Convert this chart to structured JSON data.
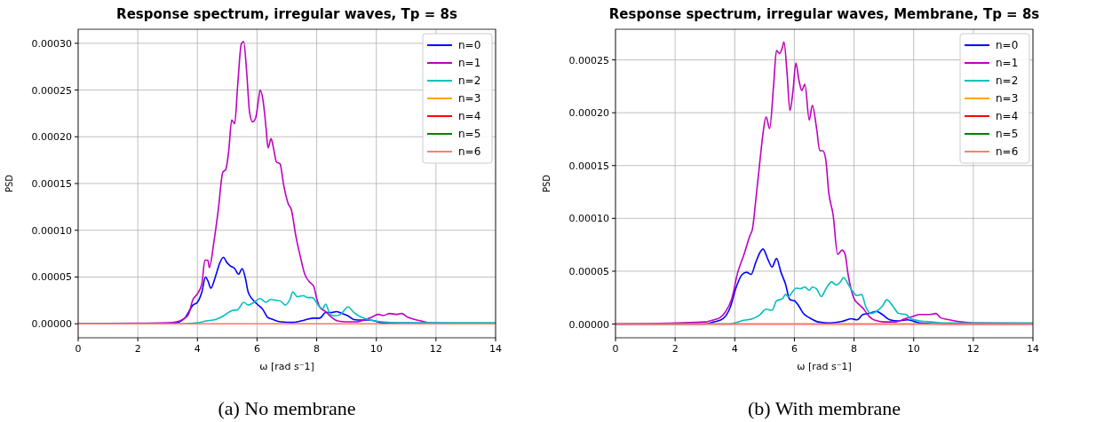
{
  "chart_data": [
    {
      "type": "line",
      "title": "Response spectrum, irregular waves, Tp = 8s",
      "xlabel": "ω [rad s⁻1]",
      "ylabel": "PSD",
      "annotations": [
        "(a) No membrane"
      ],
      "xlim": [
        0,
        14
      ],
      "ylim": [
        -1.5e-05,
        0.000315
      ],
      "xticks": [
        0,
        2,
        4,
        6,
        8,
        10,
        12,
        14
      ],
      "yticks": [
        {
          "value": 0,
          "label": "0.00000"
        },
        {
          "value": 5e-05,
          "label": "0.00005"
        },
        {
          "value": 0.0001,
          "label": "0.00010"
        },
        {
          "value": 0.00015,
          "label": "0.00015"
        },
        {
          "value": 0.0002,
          "label": "0.00020"
        },
        {
          "value": 0.00025,
          "label": "0.00025"
        },
        {
          "value": 0.0003,
          "label": "0.00030"
        }
      ],
      "grid": true,
      "legend": "top right",
      "line_style": "solid",
      "series": [
        {
          "name": "n=0",
          "color": "#0000ff",
          "x": [
            0,
            3,
            3.3,
            3.6,
            3.85,
            4.0,
            4.15,
            4.27,
            4.35,
            4.45,
            4.6,
            4.75,
            4.87,
            5.0,
            5.1,
            5.25,
            5.38,
            5.5,
            5.6,
            5.7,
            5.85,
            6.0,
            6.2,
            6.35,
            6.5,
            6.8,
            7.2,
            7.6,
            7.9,
            8.1,
            8.3,
            8.5,
            8.65,
            8.85,
            9.05,
            9.25,
            9.5,
            9.8,
            10.2,
            11,
            14
          ],
          "values": [
            0,
            0,
            1e-06,
            7e-06,
            2e-05,
            2.3e-05,
            3.4e-05,
            5e-05,
            4.6e-05,
            3.8e-05,
            5e-05,
            6.5e-05,
            7.1e-05,
            6.5e-05,
            6.2e-05,
            5.9e-05,
            5.3e-05,
            5.9e-05,
            5e-05,
            3.4e-05,
            2.6e-05,
            2.1e-05,
            1.5e-05,
            7e-06,
            5e-06,
            2e-06,
            1.5e-06,
            4e-06,
            6e-06,
            6e-06,
            1.2e-05,
            1.2e-05,
            1.3e-05,
            1.1e-05,
            8.5e-06,
            4.5e-06,
            4e-06,
            4e-06,
            1e-06,
            null,
            0
          ]
        },
        {
          "name": "n=1",
          "color": "#bf00bf",
          "x": [
            0,
            2,
            3,
            3.3,
            3.5,
            3.7,
            3.85,
            4.0,
            4.15,
            4.25,
            4.35,
            4.4,
            4.55,
            4.7,
            4.85,
            4.95,
            5.05,
            5.15,
            5.25,
            5.35,
            5.47,
            5.55,
            5.65,
            5.75,
            5.85,
            5.95,
            6.05,
            6.1,
            6.2,
            6.3,
            6.37,
            6.47,
            6.55,
            6.65,
            6.77,
            6.9,
            7.05,
            7.15,
            7.3,
            7.45,
            7.6,
            7.75,
            7.9,
            8.0,
            8.1,
            8.3,
            8.5,
            8.7,
            9.0,
            9.3,
            9.6,
            9.85,
            10.05,
            10.25,
            10.45,
            10.7,
            10.85,
            11.05,
            11.25,
            11.5,
            11.8,
            12.5,
            14
          ],
          "values": [
            0,
            6e-07,
            1e-06,
            2e-06,
            4.4e-06,
            1e-05,
            2.6e-05,
            3.2e-05,
            4.3e-05,
            6.8e-05,
            6.8e-05,
            6e-05,
            8.7e-05,
            0.000122,
            0.000162,
            0.000165,
            0.000185,
            0.000218,
            0.000214,
            0.000255,
            0.000299,
            0.000302,
            0.00027,
            0.000226,
            0.000216,
            0.00022,
            0.00024,
            0.00025,
            0.000239,
            0.00021,
            0.000188,
            0.000198,
            0.000188,
            0.000173,
            0.000171,
            0.000147,
            0.000128,
            0.000122,
            9.4e-05,
            7.2e-05,
            5.3e-05,
            4.5e-05,
            4e-05,
            2.7e-05,
            1.8e-05,
            1.3e-05,
            7e-06,
            3e-06,
            2e-06,
            2e-06,
            4e-06,
            7e-06,
            1e-05,
            9e-06,
            1.1e-05,
            1e-05,
            1.1e-05,
            7e-06,
            5e-06,
            3e-06,
            1e-06,
            5e-07,
            5e-07
          ]
        },
        {
          "name": "n=2",
          "color": "#00bfbf",
          "x": [
            0,
            3.5,
            4.0,
            4.3,
            4.6,
            4.9,
            5.15,
            5.35,
            5.55,
            5.7,
            5.9,
            6.1,
            6.3,
            6.45,
            6.65,
            6.8,
            6.95,
            7.1,
            7.2,
            7.35,
            7.55,
            7.7,
            7.85,
            8.05,
            8.2,
            8.3,
            8.45,
            8.6,
            8.8,
            9.05,
            9.25,
            9.5,
            9.8,
            10.2,
            10.8,
            11.5,
            14
          ],
          "values": [
            0,
            0,
            1e-06,
            3e-06,
            4.5e-06,
            9e-06,
            1.4e-05,
            1.5e-05,
            2.3e-05,
            2e-05,
            2.3e-05,
            2.7e-05,
            2.3e-05,
            2.6e-05,
            2.5e-05,
            2.4e-05,
            2e-05,
            2.6e-05,
            3.4e-05,
            2.9e-05,
            3e-05,
            2.8e-05,
            2.8e-05,
            2e-05,
            1.6e-05,
            2.1e-05,
            1e-05,
            8.5e-06,
            1e-05,
            1.8e-05,
            1.2e-05,
            7e-06,
            4e-06,
            2e-06,
            1e-06,
            1e-06,
            1e-06
          ]
        },
        {
          "name": "n=3",
          "color": "#ffa500"
        },
        {
          "name": "n=4",
          "color": "#ff0000"
        },
        {
          "name": "n=5",
          "color": "#008000"
        },
        {
          "name": "n=6",
          "color": "#fa8072",
          "x": [
            0,
            14
          ],
          "values": [
            0,
            0
          ]
        }
      ]
    },
    {
      "type": "line",
      "title": "Response spectrum, irregular waves, Membrane, Tp = 8s",
      "xlabel": "ω [rad s⁻1]",
      "ylabel": "PSD",
      "annotations": [
        "(b) With membrane"
      ],
      "xlim": [
        0,
        14
      ],
      "ylim": [
        -1.3e-05,
        0.000279
      ],
      "xticks": [
        0,
        2,
        4,
        6,
        8,
        10,
        12,
        14
      ],
      "yticks": [
        {
          "value": 0,
          "label": "0.00000"
        },
        {
          "value": 5e-05,
          "label": "0.00005"
        },
        {
          "value": 0.0001,
          "label": "0.00010"
        },
        {
          "value": 0.00015,
          "label": "0.00015"
        },
        {
          "value": 0.0002,
          "label": "0.00020"
        },
        {
          "value": 0.00025,
          "label": "0.00025"
        }
      ],
      "grid": true,
      "legend": "top right",
      "line_style": "solid",
      "series": [
        {
          "name": "n=0",
          "color": "#0000ff",
          "x": [
            0,
            3,
            3.3,
            3.6,
            3.85,
            4.05,
            4.25,
            4.4,
            4.55,
            4.7,
            4.85,
            4.95,
            5.1,
            5.25,
            5.4,
            5.55,
            5.7,
            5.85,
            6.0,
            6.15,
            6.3,
            6.5,
            6.8,
            7.2,
            7.6,
            7.9,
            8.1,
            8.3,
            8.5,
            8.75,
            8.95,
            9.2,
            9.5,
            9.8,
            10.2,
            11,
            14
          ],
          "values": [
            0,
            0,
            2e-06,
            5e-06,
            1.6e-05,
            3.5e-05,
            4.7e-05,
            4.9e-05,
            4.7e-05,
            5.8e-05,
            6.8e-05,
            7.1e-05,
            6.2e-05,
            5.4e-05,
            6.2e-05,
            4.9e-05,
            3.8e-05,
            2.3e-05,
            2.2e-05,
            1.7e-05,
            1e-05,
            6e-06,
            2e-06,
            1e-06,
            2.5e-06,
            5e-06,
            4e-06,
            9e-06,
            1e-05,
            1.2e-05,
            9e-06,
            4e-06,
            3e-06,
            4e-06,
            1e-06,
            0,
            0
          ]
        },
        {
          "name": "n=1",
          "color": "#bf00bf",
          "x": [
            0,
            2,
            3.0,
            3.3,
            3.5,
            3.7,
            3.9,
            4.1,
            4.3,
            4.5,
            4.6,
            4.7,
            4.85,
            4.95,
            5.05,
            5.17,
            5.3,
            5.4,
            5.5,
            5.6,
            5.65,
            5.75,
            5.85,
            5.95,
            6.05,
            6.15,
            6.25,
            6.35,
            6.5,
            6.6,
            6.75,
            6.85,
            6.95,
            7.05,
            7.15,
            7.3,
            7.45,
            7.6,
            7.7,
            7.8,
            7.9,
            8.0,
            8.15,
            8.3,
            8.5,
            8.7,
            9.0,
            9.4,
            9.7,
            9.95,
            10.2,
            10.5,
            10.75,
            10.9,
            11.2,
            11.6,
            12,
            14
          ],
          "values": [
            0,
            1e-06,
            2e-06,
            4e-06,
            6e-06,
            1.2e-05,
            2.4e-05,
            4.9e-05,
            6.5e-05,
            8.3e-05,
            9.1e-05,
            0.000116,
            0.000156,
            0.000181,
            0.000196,
            0.000185,
            0.000225,
            0.000259,
            0.000256,
            0.000262,
            0.000267,
            0.000239,
            0.000202,
            0.00022,
            0.000247,
            0.000231,
            0.000221,
            0.000227,
            0.000193,
            0.000207,
            0.000184,
            0.000164,
            0.000164,
            0.000156,
            0.000125,
            0.000103,
            6.6e-05,
            7e-05,
            6.6e-05,
            4.7e-05,
            3.3e-05,
            2.4e-05,
            1.9e-05,
            1.5e-05,
            7.5e-06,
            3.5e-06,
            2e-06,
            2e-06,
            5e-06,
            7e-06,
            9e-06,
            9e-06,
            1e-05,
            6e-06,
            4e-06,
            2e-06,
            1e-06,
            5e-07
          ]
        },
        {
          "name": "n=2",
          "color": "#00bfbf",
          "x": [
            0,
            3.8,
            4.0,
            4.3,
            4.6,
            4.85,
            5.05,
            5.25,
            5.4,
            5.6,
            5.7,
            5.8,
            5.95,
            6.05,
            6.2,
            6.35,
            6.5,
            6.6,
            6.75,
            6.9,
            7.05,
            7.25,
            7.4,
            7.55,
            7.65,
            7.8,
            7.95,
            8.1,
            8.25,
            8.4,
            8.55,
            8.75,
            8.95,
            9.1,
            9.3,
            9.5,
            9.75,
            9.9,
            10.2,
            10.6,
            11.2,
            14
          ],
          "values": [
            0,
            0,
            1e-06,
            3.5e-06,
            5e-06,
            9e-06,
            1.4e-05,
            1.3e-05,
            2.2e-05,
            2.4e-05,
            2.8e-05,
            2.6e-05,
            3.1e-05,
            3.4e-05,
            3.35e-05,
            3.5e-05,
            3.2e-05,
            3.5e-05,
            3.3e-05,
            2.6e-05,
            3.3e-05,
            4e-05,
            3.7e-05,
            4e-05,
            4.4e-05,
            3.8e-05,
            3.1e-05,
            2.7e-05,
            2.8e-05,
            1.6e-05,
            1e-05,
            1.2e-05,
            1.7e-05,
            2.3e-05,
            1.7e-05,
            1e-05,
            9e-06,
            5e-06,
            3e-06,
            2e-06,
            1e-06,
            1e-06
          ]
        },
        {
          "name": "n=3",
          "color": "#ffa500"
        },
        {
          "name": "n=4",
          "color": "#ff0000",
          "x": [
            0,
            14
          ],
          "values": [
            0,
            0
          ]
        },
        {
          "name": "n=5",
          "color": "#008000"
        },
        {
          "name": "n=6",
          "color": "#fa8072",
          "x": [
            0,
            14
          ],
          "values": [
            0,
            0
          ]
        }
      ]
    }
  ]
}
